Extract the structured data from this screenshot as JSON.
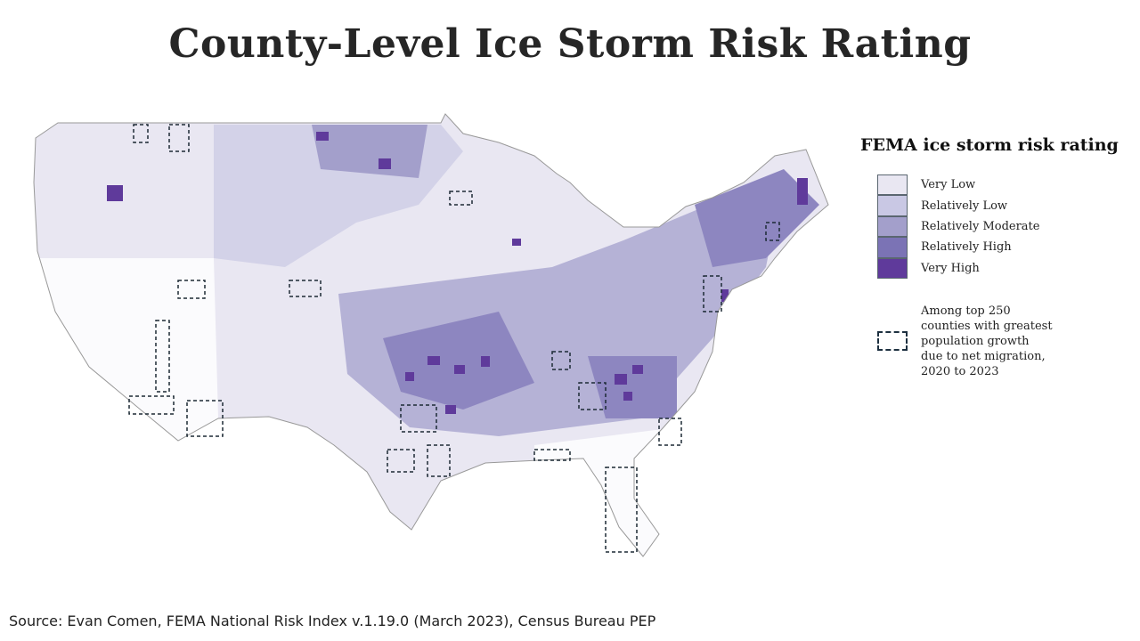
{
  "title": "County-Level Ice Storm Risk Rating",
  "legend": {
    "title": "FEMA ice storm risk rating",
    "items": [
      {
        "label": "Very Low",
        "color": "#e9e7f2"
      },
      {
        "label": "Relatively Low",
        "color": "#c9c8e4"
      },
      {
        "label": "Relatively Moderate",
        "color": "#a39fcb"
      },
      {
        "label": "Relatively High",
        "color": "#7b73b5"
      },
      {
        "label": "Very High",
        "color": "#5f3a9b"
      }
    ],
    "migration_label": "Among top 250 counties with greatest population growth due to net migration, 2020 to 2023",
    "no_rating_color": "#fbfbfd"
  },
  "source": "Source: Evan Comen, FEMA National Risk Index v.1.19.0 (March 2023), Census Bureau PEP"
}
